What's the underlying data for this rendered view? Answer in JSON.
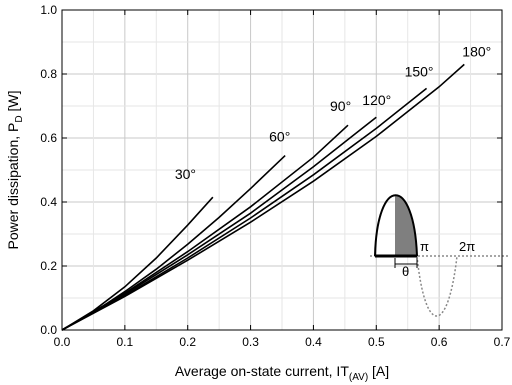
{
  "chart_data": {
    "type": "line",
    "xlabel": "Average on-state current, IT",
    "xlabel_sub": "(AV)",
    "xlabel_unit": "[A]",
    "ylabel": "Power dissipation, P",
    "ylabel_sub": "D",
    "ylabel_unit": "[W]",
    "xlim": [
      0.0,
      0.7
    ],
    "ylim": [
      0.0,
      1.0
    ],
    "x_ticks": [
      "0.0",
      "0.1",
      "0.2",
      "0.3",
      "0.4",
      "0.5",
      "0.6",
      "0.7"
    ],
    "y_ticks": [
      "0.0",
      "0.2",
      "0.4",
      "0.6",
      "0.8",
      "1.0"
    ],
    "grid": true,
    "series": [
      {
        "name": "30°",
        "x": [
          0,
          0.05,
          0.1,
          0.15,
          0.2,
          0.24
        ],
        "y": [
          0,
          0.06,
          0.135,
          0.225,
          0.328,
          0.415
        ]
      },
      {
        "name": "60°",
        "x": [
          0,
          0.05,
          0.1,
          0.15,
          0.2,
          0.25,
          0.3,
          0.355
        ],
        "y": [
          0,
          0.055,
          0.12,
          0.19,
          0.268,
          0.352,
          0.442,
          0.545
        ]
      },
      {
        "name": "90°",
        "x": [
          0,
          0.1,
          0.2,
          0.3,
          0.4,
          0.455
        ],
        "y": [
          0,
          0.115,
          0.245,
          0.385,
          0.54,
          0.64
        ]
      },
      {
        "name": "120°",
        "x": [
          0,
          0.1,
          0.2,
          0.3,
          0.4,
          0.5
        ],
        "y": [
          0,
          0.112,
          0.235,
          0.365,
          0.51,
          0.665
        ]
      },
      {
        "name": "150°",
        "x": [
          0,
          0.1,
          0.2,
          0.3,
          0.4,
          0.5,
          0.58
        ],
        "y": [
          0,
          0.108,
          0.225,
          0.35,
          0.485,
          0.63,
          0.755
        ]
      },
      {
        "name": "180°",
        "x": [
          0,
          0.1,
          0.2,
          0.3,
          0.4,
          0.5,
          0.6,
          0.64
        ],
        "y": [
          0,
          0.105,
          0.218,
          0.337,
          0.465,
          0.605,
          0.76,
          0.83
        ]
      }
    ],
    "curve_labels": [
      "30°",
      "60°",
      "90°",
      "120°",
      "150°",
      "180°"
    ],
    "inset": {
      "label_pi": "π",
      "label_2pi": "2π",
      "label_theta": "θ"
    }
  }
}
